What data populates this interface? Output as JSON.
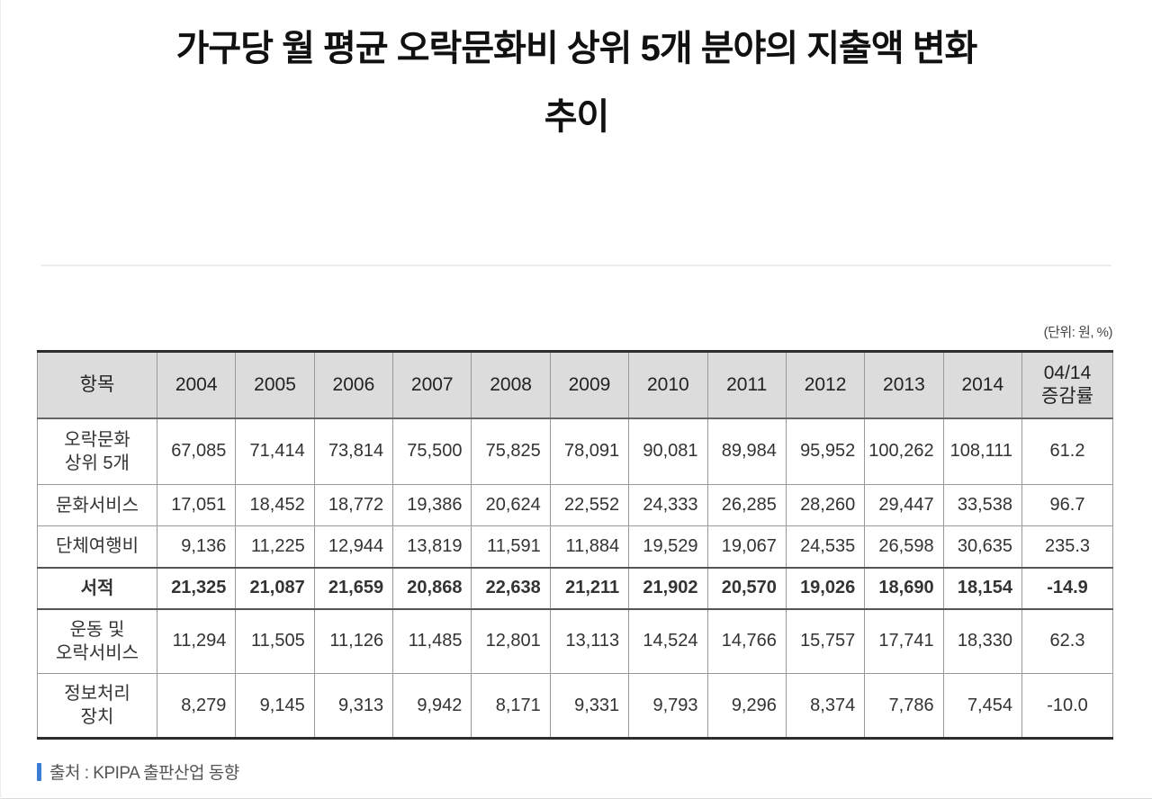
{
  "title": {
    "line1": "가구당 월 평균 오락문화비 상위 5개 분야의 지출액 변화",
    "line2": "추이"
  },
  "unit_note": "(단위: 원, %)",
  "source": {
    "text": "출처 : KPIPA 출판산업 동향",
    "accent_color": "#3b7cd5"
  },
  "colors": {
    "header_bg": "#dcdcdc",
    "outer_border": "#2d2d2d",
    "inner_border": "#999999",
    "text": "#333333"
  },
  "chart_data": {
    "type": "table",
    "title": "가구당 월 평균 오락문화비 상위 5개 분야의 지출액 변화 추이",
    "unit": "원, %",
    "columns": [
      "항목",
      "2004",
      "2005",
      "2006",
      "2007",
      "2008",
      "2009",
      "2010",
      "2011",
      "2012",
      "2013",
      "2014",
      "04/14\n증감률"
    ],
    "rows": [
      {
        "label": "오락문화\n상위 5개",
        "bold": false,
        "values": [
          "67,085",
          "71,414",
          "73,814",
          "75,500",
          "75,825",
          "78,091",
          "90,081",
          "89,984",
          "95,952",
          "100,262",
          "108,111",
          "61.2"
        ]
      },
      {
        "label": "문화서비스",
        "bold": false,
        "values": [
          "17,051",
          "18,452",
          "18,772",
          "19,386",
          "20,624",
          "22,552",
          "24,333",
          "26,285",
          "28,260",
          "29,447",
          "33,538",
          "96.7"
        ]
      },
      {
        "label": "단체여행비",
        "bold": false,
        "values": [
          "9,136",
          "11,225",
          "12,944",
          "13,819",
          "11,591",
          "11,884",
          "19,529",
          "19,067",
          "24,535",
          "26,598",
          "30,635",
          "235.3"
        ]
      },
      {
        "label": "서적",
        "bold": true,
        "values": [
          "21,325",
          "21,087",
          "21,659",
          "20,868",
          "22,638",
          "21,211",
          "21,902",
          "20,570",
          "19,026",
          "18,690",
          "18,154",
          "-14.9"
        ]
      },
      {
        "label": "운동 및\n오락서비스",
        "bold": false,
        "values": [
          "11,294",
          "11,505",
          "11,126",
          "11,485",
          "12,801",
          "13,113",
          "14,524",
          "14,766",
          "15,757",
          "17,741",
          "18,330",
          "62.3"
        ]
      },
      {
        "label": "정보처리\n장치",
        "bold": false,
        "values": [
          "8,279",
          "9,145",
          "9,313",
          "9,942",
          "8,171",
          "9,331",
          "9,793",
          "9,296",
          "8,374",
          "7,786",
          "7,454",
          "-10.0"
        ]
      }
    ]
  }
}
